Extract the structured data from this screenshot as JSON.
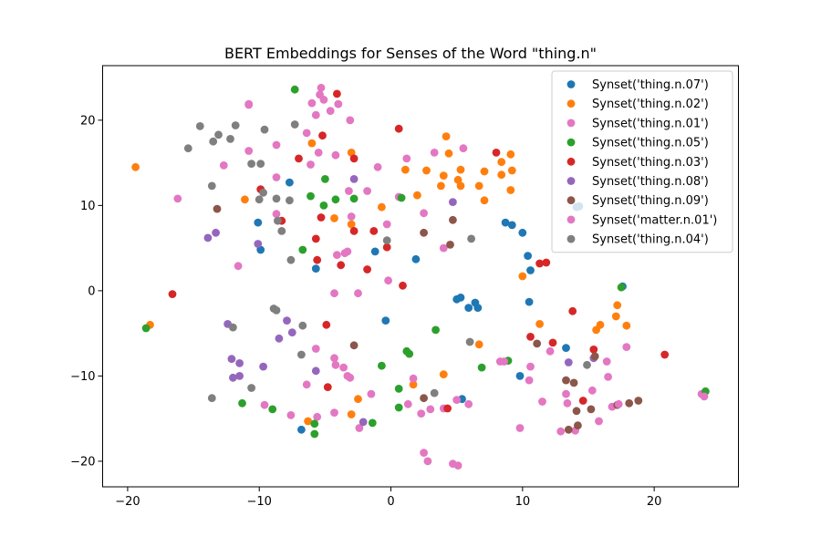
{
  "chart_data": {
    "type": "scatter",
    "title": "BERT Embeddings for Senses of the Word \"thing.n\"",
    "xlabel": "",
    "ylabel": "",
    "xlim": [
      -21.9,
      26.4
    ],
    "ylim": [
      -23,
      26.4
    ],
    "xticks": [
      -20,
      -10,
      0,
      10,
      20
    ],
    "yticks": [
      -20,
      -10,
      0,
      10,
      20
    ],
    "grid": false,
    "legend_position": "top-right",
    "series": [
      {
        "name": "Synset('thing.n.07')",
        "color": "#1f77b4",
        "points": [
          [
            -7.7,
            12.7
          ],
          [
            -10.1,
            8.0
          ],
          [
            -9.9,
            4.8
          ],
          [
            -5.7,
            2.6
          ],
          [
            -1.2,
            4.6
          ],
          [
            1.9,
            3.7
          ],
          [
            5.0,
            -1.0
          ],
          [
            5.3,
            -0.8
          ],
          [
            5.9,
            -2.0
          ],
          [
            6.4,
            -1.4
          ],
          [
            6.6,
            -2.0
          ],
          [
            8.7,
            8.0
          ],
          [
            9.2,
            7.7
          ],
          [
            10.0,
            6.8
          ],
          [
            10.4,
            4.1
          ],
          [
            10.6,
            2.4
          ],
          [
            10.5,
            -1.3
          ],
          [
            9.8,
            -10.0
          ],
          [
            13.3,
            -6.7
          ],
          [
            -0.4,
            -3.5
          ],
          [
            5.4,
            -12.7
          ],
          [
            -6.8,
            -16.3
          ],
          [
            14.3,
            9.9
          ],
          [
            14.1,
            9.8
          ],
          [
            17.6,
            0.5
          ]
        ]
      },
      {
        "name": "Synset('thing.n.02')",
        "color": "#ff7f0e",
        "points": [
          [
            -19.4,
            14.5
          ],
          [
            -11.1,
            10.7
          ],
          [
            -6.0,
            17.3
          ],
          [
            -4.3,
            8.5
          ],
          [
            -3.0,
            7.8
          ],
          [
            -3.0,
            16.2
          ],
          [
            -0.7,
            9.8
          ],
          [
            1.1,
            14.2
          ],
          [
            2.0,
            11.2
          ],
          [
            2.7,
            14.1
          ],
          [
            4.0,
            13.5
          ],
          [
            3.8,
            12.3
          ],
          [
            4.2,
            18.1
          ],
          [
            4.4,
            16.1
          ],
          [
            5.3,
            14.2
          ],
          [
            5.1,
            13.0
          ],
          [
            5.3,
            12.3
          ],
          [
            6.7,
            12.3
          ],
          [
            7.1,
            14.0
          ],
          [
            7.1,
            10.6
          ],
          [
            8.4,
            13.6
          ],
          [
            8.4,
            15.1
          ],
          [
            9.2,
            14.1
          ],
          [
            9.1,
            16.0
          ],
          [
            9.1,
            11.8
          ],
          [
            10.0,
            1.7
          ],
          [
            11.3,
            -3.9
          ],
          [
            15.9,
            -4.0
          ],
          [
            15.6,
            -4.6
          ],
          [
            17.1,
            -3.0
          ],
          [
            17.2,
            -1.7
          ],
          [
            17.9,
            -4.1
          ],
          [
            6.7,
            -6.3
          ],
          [
            4.0,
            -9.8
          ],
          [
            -18.3,
            -4.0
          ],
          [
            -6.3,
            -15.3
          ],
          [
            -3.0,
            -14.5
          ],
          [
            -2.5,
            -12.7
          ],
          [
            1.7,
            -11.0
          ]
        ]
      },
      {
        "name": "Synset('thing.n.01')",
        "color": "#e377c2",
        "points": [
          [
            -10.8,
            21.8
          ],
          [
            -16.2,
            10.8
          ],
          [
            -12.7,
            14.7
          ],
          [
            -10.8,
            16.4
          ],
          [
            -8.7,
            17.1
          ],
          [
            -8.7,
            13.3
          ],
          [
            -8.7,
            9.0
          ],
          [
            -6.4,
            18.5
          ],
          [
            -6.1,
            14.8
          ],
          [
            -6.0,
            22.0
          ],
          [
            -5.7,
            20.6
          ],
          [
            -5.4,
            23.0
          ],
          [
            -5.3,
            23.8
          ],
          [
            -5.1,
            22.4
          ],
          [
            -4.6,
            21.1
          ],
          [
            -4.0,
            21.9
          ],
          [
            -3.1,
            20.0
          ],
          [
            -3.2,
            11.7
          ],
          [
            -3.0,
            8.7
          ],
          [
            -1.8,
            11.7
          ],
          [
            -1.0,
            14.5
          ],
          [
            0.6,
            11.0
          ],
          [
            1.2,
            15.5
          ],
          [
            2.5,
            9.1
          ],
          [
            3.3,
            16.2
          ],
          [
            5.5,
            16.7
          ],
          [
            -4.2,
            15.9
          ],
          [
            -5.5,
            16.2
          ],
          [
            -3.5,
            4.4
          ],
          [
            -4.1,
            4.2
          ],
          [
            -0.3,
            7.8
          ],
          [
            4.0,
            5.0
          ],
          [
            -11.6,
            2.9
          ],
          [
            -4.3,
            -0.3
          ],
          [
            -2.5,
            -0.3
          ],
          [
            -0.2,
            1.2
          ],
          [
            -5.7,
            -6.8
          ],
          [
            -4.3,
            -7.9
          ],
          [
            -4.2,
            -8.7
          ],
          [
            -3.6,
            -9.0
          ],
          [
            -3.3,
            -10.0
          ],
          [
            -3.1,
            -10.2
          ],
          [
            -1.5,
            -12.1
          ],
          [
            -2.4,
            -16.1
          ],
          [
            -4.3,
            -14.3
          ],
          [
            -5.6,
            -14.8
          ],
          [
            -6.4,
            -11.0
          ],
          [
            -7.6,
            -14.6
          ],
          [
            -9.6,
            -13.4
          ],
          [
            1.3,
            -13.3
          ],
          [
            1.7,
            -10.3
          ],
          [
            2.3,
            -14.4
          ],
          [
            3.0,
            -13.9
          ],
          [
            4.0,
            -13.8
          ],
          [
            5.0,
            -12.8
          ],
          [
            5.9,
            -13.3
          ],
          [
            2.5,
            -19.0
          ],
          [
            2.8,
            -20.0
          ],
          [
            4.7,
            -20.3
          ],
          [
            5.1,
            -20.5
          ],
          [
            8.3,
            -8.3
          ],
          [
            9.8,
            -16.1
          ],
          [
            10.6,
            -8.9
          ],
          [
            10.5,
            -10.5
          ],
          [
            11.5,
            -13.0
          ],
          [
            12.1,
            -7.1
          ],
          [
            12.9,
            -16.5
          ],
          [
            13.3,
            -12.1
          ],
          [
            13.4,
            -13.2
          ],
          [
            14.0,
            -16.4
          ],
          [
            15.3,
            -11.7
          ],
          [
            15.8,
            -15.3
          ],
          [
            16.4,
            -8.3
          ],
          [
            16.5,
            -10.1
          ],
          [
            16.8,
            -13.6
          ],
          [
            17.9,
            -6.6
          ],
          [
            23.6,
            -12.1
          ]
        ]
      },
      {
        "name": "Synset('thing.n.05')",
        "color": "#2ca02c",
        "points": [
          [
            -7.3,
            23.6
          ],
          [
            -6.1,
            11.1
          ],
          [
            -5.1,
            10.0
          ],
          [
            -4.2,
            10.7
          ],
          [
            -2.8,
            10.8
          ],
          [
            0.8,
            10.9
          ],
          [
            -5.0,
            13.1
          ],
          [
            -6.7,
            4.8
          ],
          [
            -18.6,
            -4.4
          ],
          [
            -11.3,
            -13.2
          ],
          [
            -9.0,
            -13.9
          ],
          [
            -5.8,
            -15.6
          ],
          [
            -5.8,
            -16.8
          ],
          [
            -1.4,
            -15.5
          ],
          [
            -0.7,
            -8.8
          ],
          [
            0.6,
            -11.5
          ],
          [
            0.6,
            -13.7
          ],
          [
            1.2,
            -7.1
          ],
          [
            1.4,
            -7.4
          ],
          [
            3.4,
            -4.6
          ],
          [
            6.9,
            -9.0
          ],
          [
            8.9,
            -8.2
          ],
          [
            17.5,
            0.4
          ],
          [
            23.9,
            -11.8
          ]
        ]
      },
      {
        "name": "Synset('thing.n.03')",
        "color": "#d62728",
        "points": [
          [
            -4.1,
            23.1
          ],
          [
            -5.2,
            18.2
          ],
          [
            -7.0,
            15.5
          ],
          [
            -9.9,
            11.9
          ],
          [
            -2.8,
            15.5
          ],
          [
            0.6,
            19.0
          ],
          [
            -8.3,
            8.2
          ],
          [
            -5.3,
            8.6
          ],
          [
            -5.7,
            6.1
          ],
          [
            -2.8,
            7.0
          ],
          [
            -1.3,
            7.0
          ],
          [
            -0.3,
            5.1
          ],
          [
            -5.6,
            3.6
          ],
          [
            -3.8,
            3.0
          ],
          [
            -1.8,
            2.5
          ],
          [
            0.9,
            0.6
          ],
          [
            -16.6,
            -0.4
          ],
          [
            -4.9,
            -4.0
          ],
          [
            -4.8,
            -11.3
          ],
          [
            4.3,
            -13.8
          ],
          [
            10.6,
            -5.4
          ],
          [
            11.3,
            3.2
          ],
          [
            11.8,
            3.3
          ],
          [
            12.3,
            -6.1
          ],
          [
            13.8,
            -2.4
          ],
          [
            14.6,
            -12.9
          ],
          [
            15.4,
            -6.9
          ],
          [
            20.8,
            -7.5
          ],
          [
            8.0,
            16.2
          ]
        ]
      },
      {
        "name": "Synset('thing.n.08')",
        "color": "#9467bd",
        "points": [
          [
            -13.9,
            6.2
          ],
          [
            -13.3,
            6.8
          ],
          [
            -10.1,
            5.5
          ],
          [
            -12.4,
            -3.9
          ],
          [
            -12.1,
            -8.0
          ],
          [
            -11.5,
            -8.5
          ],
          [
            -12.0,
            -10.2
          ],
          [
            -11.5,
            -10.0
          ],
          [
            -9.7,
            -8.9
          ],
          [
            -8.5,
            -5.6
          ],
          [
            -7.9,
            -3.5
          ],
          [
            -7.5,
            -4.9
          ],
          [
            -5.7,
            -9.4
          ],
          [
            -2.8,
            13.1
          ],
          [
            -2.1,
            -15.4
          ],
          [
            4.7,
            10.4
          ],
          [
            13.5,
            -8.4
          ],
          [
            15.4,
            -7.9
          ]
        ]
      },
      {
        "name": "Synset('thing.n.09')",
        "color": "#8c564b",
        "points": [
          [
            -13.2,
            9.6
          ],
          [
            -2.8,
            -6.4
          ],
          [
            2.5,
            6.8
          ],
          [
            2.5,
            -12.6
          ],
          [
            4.5,
            5.4
          ],
          [
            4.7,
            8.3
          ],
          [
            11.1,
            -6.2
          ],
          [
            13.3,
            -10.5
          ],
          [
            13.5,
            -16.3
          ],
          [
            13.9,
            -10.8
          ],
          [
            14.1,
            -14.1
          ],
          [
            14.2,
            -15.8
          ],
          [
            15.2,
            -13.9
          ],
          [
            15.5,
            -7.7
          ],
          [
            17.2,
            -13.4
          ],
          [
            18.1,
            -13.2
          ],
          [
            18.8,
            -12.9
          ]
        ]
      },
      {
        "name": "Synset('matter.n.01')",
        "color": "#e377c2",
        "points": [
          [
            -10.8,
            21.9
          ],
          [
            -3.3,
            4.6
          ],
          [
            8.6,
            -8.3
          ],
          [
            23.8,
            -12.4
          ],
          [
            17.3,
            -13.3
          ]
        ]
      },
      {
        "name": "Synset('thing.n.04')",
        "color": "#7f7f7f",
        "points": [
          [
            -14.5,
            19.3
          ],
          [
            -13.5,
            17.5
          ],
          [
            -13.1,
            18.3
          ],
          [
            -12.2,
            17.8
          ],
          [
            -11.8,
            19.4
          ],
          [
            -9.6,
            18.9
          ],
          [
            -7.3,
            19.5
          ],
          [
            -15.4,
            16.7
          ],
          [
            -10.6,
            14.9
          ],
          [
            -9.9,
            14.9
          ],
          [
            -8.7,
            10.8
          ],
          [
            -7.7,
            10.6
          ],
          [
            -10.0,
            10.7
          ],
          [
            -9.7,
            11.5
          ],
          [
            -8.3,
            7.0
          ],
          [
            -8.6,
            8.2
          ],
          [
            -7.6,
            3.6
          ],
          [
            -13.6,
            12.3
          ],
          [
            -0.3,
            5.9
          ],
          [
            6.1,
            6.1
          ],
          [
            -8.9,
            -2.1
          ],
          [
            -8.7,
            -2.3
          ],
          [
            -6.7,
            -4.1
          ],
          [
            -6.8,
            -7.5
          ],
          [
            -12.0,
            -4.3
          ],
          [
            -10.6,
            -11.4
          ],
          [
            -13.6,
            -12.6
          ],
          [
            3.3,
            -12.0
          ],
          [
            6.0,
            -6.0
          ],
          [
            14.9,
            -8.7
          ]
        ]
      }
    ]
  }
}
